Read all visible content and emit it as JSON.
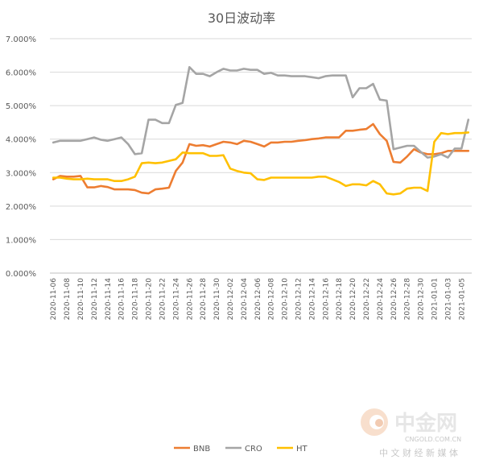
{
  "chart_data": {
    "type": "line",
    "title": "30日波动率",
    "xlabel": "",
    "ylabel": "",
    "ylim": [
      0,
      7
    ],
    "y_tick_labels": [
      "0.000%",
      "1.000%",
      "2.000%",
      "3.000%",
      "4.000%",
      "5.000%",
      "6.000%",
      "7.000%"
    ],
    "grid": true,
    "legend_position": "bottom-center",
    "x": [
      "2020-11-06",
      "2020-11-07",
      "2020-11-08",
      "2020-11-09",
      "2020-11-10",
      "2020-11-11",
      "2020-11-12",
      "2020-11-13",
      "2020-11-14",
      "2020-11-15",
      "2020-11-16",
      "2020-11-17",
      "2020-11-18",
      "2020-11-19",
      "2020-11-20",
      "2020-11-21",
      "2020-11-22",
      "2020-11-23",
      "2020-11-24",
      "2020-11-25",
      "2020-11-26",
      "2020-11-27",
      "2020-11-28",
      "2020-11-29",
      "2020-11-30",
      "2020-12-01",
      "2020-12-02",
      "2020-12-03",
      "2020-12-04",
      "2020-12-05",
      "2020-12-06",
      "2020-12-07",
      "2020-12-08",
      "2020-12-09",
      "2020-12-10",
      "2020-12-11",
      "2020-12-12",
      "2020-12-13",
      "2020-12-14",
      "2020-12-15",
      "2020-12-16",
      "2020-12-17",
      "2020-12-18",
      "2020-12-19",
      "2020-12-20",
      "2020-12-21",
      "2020-12-22",
      "2020-12-23",
      "2020-12-24",
      "2020-12-25",
      "2020-12-26",
      "2020-12-27",
      "2020-12-28",
      "2020-12-29",
      "2020-12-30",
      "2020-12-31",
      "2021-01-01",
      "2021-01-02",
      "2021-01-03",
      "2021-01-04",
      "2021-01-05",
      "2021-01-06"
    ],
    "x_tick_labels": [
      "2020-11-06",
      "2020-11-08",
      "2020-11-10",
      "2020-11-12",
      "2020-11-14",
      "2020-11-16",
      "2020-11-18",
      "2020-11-20",
      "2020-11-22",
      "2020-11-24",
      "2020-11-26",
      "2020-11-28",
      "2020-11-30",
      "2020-12-02",
      "2020-12-04",
      "2020-12-06",
      "2020-12-08",
      "2020-12-10",
      "2020-12-12",
      "2020-12-14",
      "2020-12-16",
      "2020-12-18",
      "2020-12-20",
      "2020-12-22",
      "2020-12-24",
      "2020-12-26",
      "2020-12-28",
      "2020-12-30",
      "2021-01-01",
      "2021-01-03",
      "2021-01-05"
    ],
    "series": [
      {
        "name": "BNB",
        "color": "#ED7D31",
        "values": [
          2.8,
          2.9,
          2.88,
          2.88,
          2.9,
          2.56,
          2.56,
          2.6,
          2.57,
          2.5,
          2.5,
          2.5,
          2.48,
          2.4,
          2.38,
          2.5,
          2.52,
          2.55,
          3.05,
          3.3,
          3.85,
          3.8,
          3.82,
          3.78,
          3.85,
          3.92,
          3.9,
          3.85,
          3.95,
          3.92,
          3.85,
          3.78,
          3.9,
          3.9,
          3.92,
          3.92,
          3.95,
          3.97,
          4.0,
          4.02,
          4.05,
          4.05,
          4.05,
          4.25,
          4.25,
          4.28,
          4.3,
          4.45,
          4.15,
          3.95,
          3.32,
          3.3,
          3.48,
          3.7,
          3.6,
          3.55,
          3.55,
          3.58,
          3.65,
          3.65,
          3.65,
          3.65
        ]
      },
      {
        "name": "CRO",
        "color": "#A5A5A5",
        "values": [
          3.9,
          3.95,
          3.95,
          3.95,
          3.95,
          4.0,
          4.05,
          3.98,
          3.95,
          4.0,
          4.05,
          3.85,
          3.55,
          3.58,
          4.58,
          4.58,
          4.48,
          4.48,
          5.02,
          5.08,
          6.15,
          5.95,
          5.95,
          5.88,
          6.0,
          6.1,
          6.05,
          6.05,
          6.1,
          6.07,
          6.07,
          5.95,
          5.98,
          5.9,
          5.9,
          5.88,
          5.88,
          5.88,
          5.85,
          5.82,
          5.88,
          5.9,
          5.9,
          5.9,
          5.25,
          5.52,
          5.52,
          5.65,
          5.18,
          5.15,
          3.7,
          3.75,
          3.8,
          3.8,
          3.62,
          3.45,
          3.48,
          3.55,
          3.45,
          3.72,
          3.72,
          4.58
        ]
      },
      {
        "name": "HT",
        "color": "#FFC000",
        "values": [
          2.85,
          2.85,
          2.82,
          2.8,
          2.8,
          2.82,
          2.8,
          2.8,
          2.8,
          2.75,
          2.75,
          2.8,
          2.88,
          3.28,
          3.3,
          3.28,
          3.3,
          3.35,
          3.4,
          3.6,
          3.58,
          3.58,
          3.58,
          3.5,
          3.5,
          3.52,
          3.12,
          3.05,
          3.0,
          2.98,
          2.8,
          2.78,
          2.85,
          2.85,
          2.85,
          2.85,
          2.85,
          2.85,
          2.85,
          2.88,
          2.88,
          2.8,
          2.72,
          2.6,
          2.65,
          2.65,
          2.62,
          2.75,
          2.65,
          2.38,
          2.35,
          2.38,
          2.52,
          2.55,
          2.55,
          2.45,
          3.92,
          4.18,
          4.15,
          4.18,
          4.18,
          4.2
        ]
      }
    ]
  },
  "watermark": {
    "brand": "中金网",
    "domain": "CNGOLD.COM.CN",
    "slogan": "中 文 财 经 新 媒 体",
    "logo_color": "#E8A274"
  }
}
